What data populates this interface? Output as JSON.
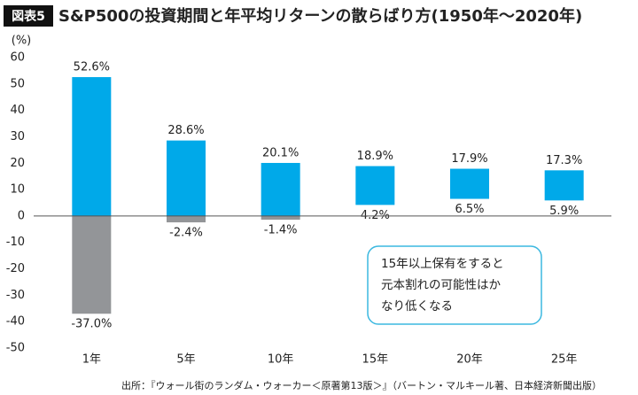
{
  "chart_data": {
    "type": "range_bar",
    "figure_label": "図表5",
    "title": "S&P500の投資期間と年平均リターンの散らばり方(1950年～2020年)",
    "y_unit": "(%)",
    "categories": [
      "1年",
      "5年",
      "10年",
      "15年",
      "20年",
      "25年"
    ],
    "series": [
      {
        "values": [
          52.6,
          28.6,
          20.1,
          18.9,
          17.9,
          17.3
        ],
        "value_labels": [
          "52.6%",
          "28.6%",
          "20.1%",
          "18.9%",
          "17.9%",
          "17.3%"
        ]
      },
      {
        "values": [
          -37.0,
          -2.4,
          -1.4,
          4.2,
          6.5,
          5.9
        ],
        "value_labels": [
          "-37.0%",
          "-2.4%",
          "-1.4%",
          "4.2%",
          "6.5%",
          "5.9%"
        ]
      }
    ],
    "positive_color": "#00a9e9",
    "negative_color": "#939598",
    "ylim": [
      -50,
      60
    ],
    "yticks": [
      60,
      50,
      40,
      30,
      20,
      10,
      0,
      -10,
      -20,
      -30,
      -40,
      -50
    ],
    "annotation": [
      "15年以上保有をすると",
      "元本割れの可能性はか",
      "なり低くなる"
    ],
    "source": "出所：『ウォール街のランダム・ウォーカー＜原著第13版＞』（バートン・マルキール著、日本経済新聞出版）"
  }
}
